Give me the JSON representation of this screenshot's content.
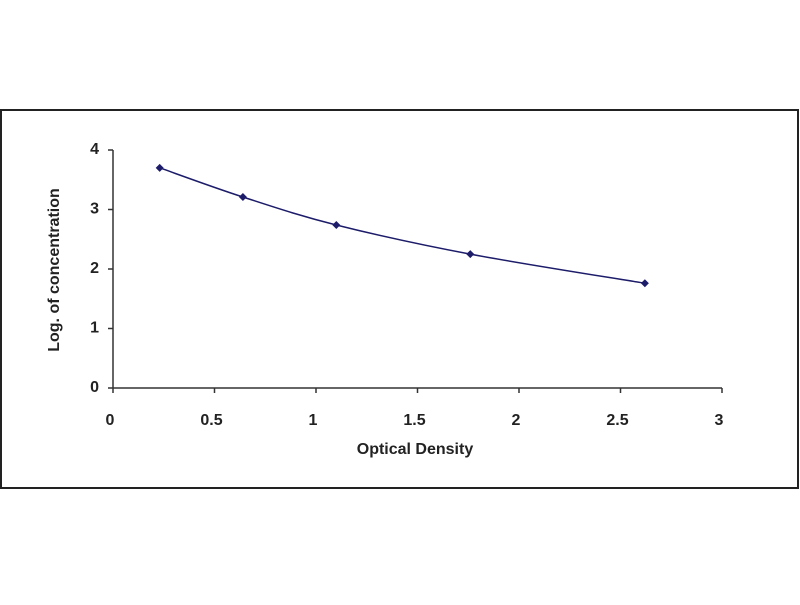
{
  "chart_data": {
    "type": "scatter",
    "x_label": "Optical Density",
    "y_label": "Log. of concentration",
    "series": [
      {
        "color": "#1c1c6a",
        "x": [
          0.23,
          0.64,
          1.1,
          1.76,
          2.62
        ],
        "values": [
          3.7,
          3.21,
          2.74,
          2.25,
          1.76
        ]
      }
    ],
    "xlim": [
      0,
      3
    ],
    "xticks": [
      0,
      0.5,
      1,
      1.5,
      2,
      2.5,
      3
    ],
    "ylim": [
      0,
      4
    ],
    "yticks": [
      0,
      1,
      2,
      3,
      4
    ],
    "grid": false,
    "smooth": true
  }
}
